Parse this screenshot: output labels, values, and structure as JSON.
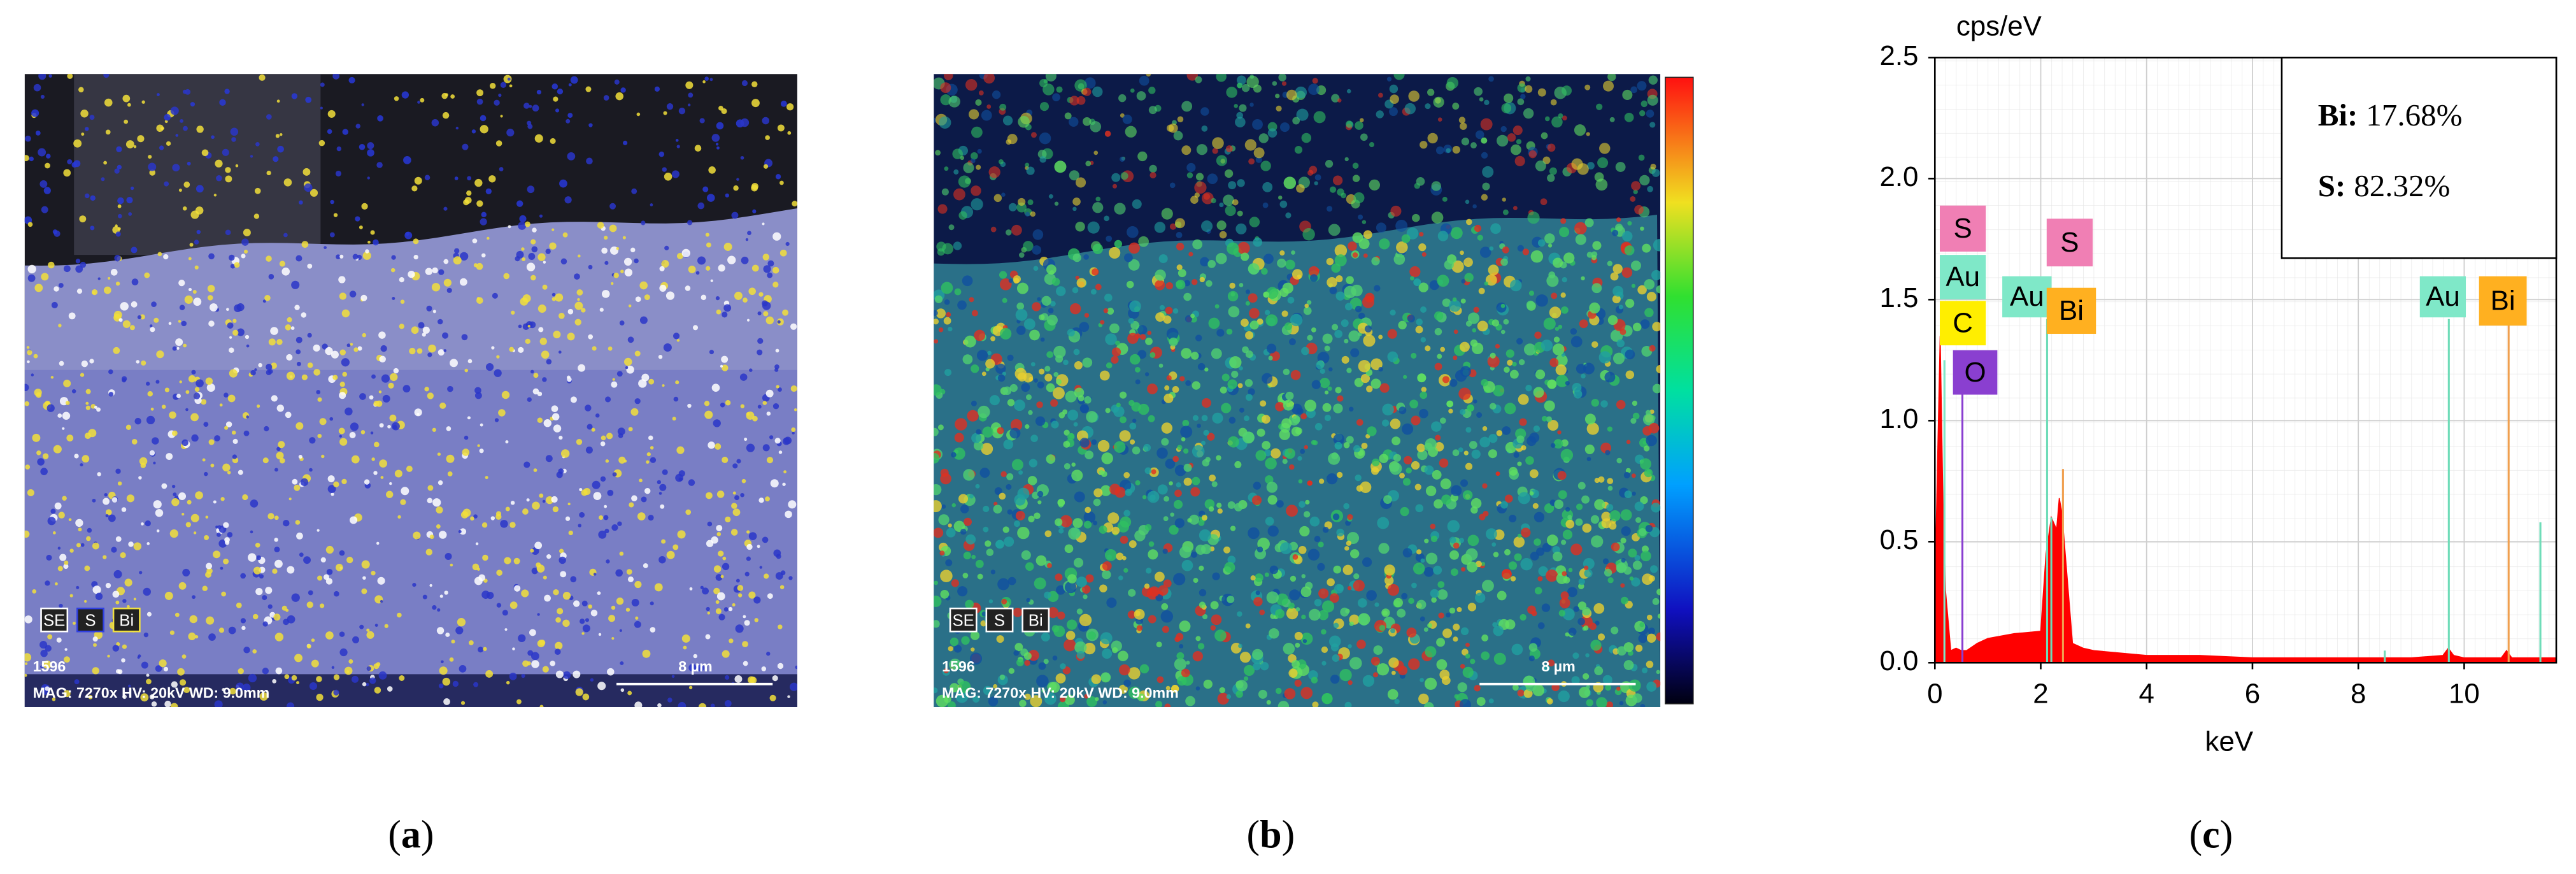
{
  "panels": [
    {
      "caption": {
        "open": "(",
        "letter": "a",
        "close": ")"
      },
      "legend": [
        "SE",
        "S",
        "Bi"
      ],
      "image_id": "1596",
      "info": "MAG: 7270x  HV: 20kV  WD: 9.0mm",
      "scale_bar": "8 µm"
    },
    {
      "caption": {
        "open": "(",
        "letter": "b",
        "close": ")"
      },
      "legend": [
        "SE",
        "S",
        "Bi"
      ],
      "image_id": "1596",
      "info": "MAG: 7270x  HV: 20kV  WD: 9.0mm",
      "scale_bar": "8 µm"
    }
  ],
  "chart_caption": {
    "open": "(",
    "letter": "c",
    "close": ")"
  },
  "chart_data": {
    "type": "area",
    "y_label": "cps/eV",
    "x_label": "keV",
    "x": [
      0,
      0.1,
      0.15,
      0.2,
      0.3,
      0.4,
      0.5,
      0.6,
      0.8,
      1.0,
      1.5,
      2.0,
      2.1,
      2.2,
      2.3,
      2.35,
      2.4,
      2.5,
      2.6,
      2.8,
      3,
      4,
      5,
      6,
      7,
      8,
      9,
      9.6,
      9.7,
      9.8,
      10,
      10.7,
      10.8,
      10.9,
      11,
      11.5,
      11.74
    ],
    "series": [
      {
        "color": "#ff0000",
        "values": [
          0.3,
          1.35,
          0.7,
          0.3,
          0.05,
          0.06,
          0.05,
          0.05,
          0.08,
          0.1,
          0.12,
          0.13,
          0.45,
          0.6,
          0.55,
          0.68,
          0.62,
          0.35,
          0.08,
          0.06,
          0.05,
          0.03,
          0.03,
          0.02,
          0.02,
          0.02,
          0.02,
          0.03,
          0.06,
          0.03,
          0.02,
          0.02,
          0.05,
          0.02,
          0.02,
          0.02,
          0.02
        ]
      }
    ],
    "element_lines": [
      {
        "energy": 0.18,
        "height": 1.25,
        "color": "#7fe8c8"
      },
      {
        "energy": 0.52,
        "height": 1.11,
        "color": "#8a3fd0"
      },
      {
        "energy": 2.12,
        "height": 1.42,
        "color": "#6fdcb8"
      },
      {
        "energy": 2.2,
        "height": 0.6,
        "color": "#6fdcb8"
      },
      {
        "energy": 2.42,
        "height": 0.8,
        "color": "#f0a050"
      },
      {
        "energy": 8.5,
        "height": 0.05,
        "color": "#6fdcb8"
      },
      {
        "energy": 9.71,
        "height": 1.42,
        "color": "#6fdcb8"
      },
      {
        "energy": 10.84,
        "height": 1.42,
        "color": "#f0a050"
      },
      {
        "energy": 11.44,
        "height": 0.58,
        "color": "#6fdcb8"
      }
    ],
    "element_labels": [
      {
        "text": "S",
        "color": "#f07fb4"
      },
      {
        "text": "Au",
        "color": "#7fe8c8"
      },
      {
        "text": "C",
        "color": "#ffee00"
      },
      {
        "text": "O",
        "color": "#8a3fd0"
      },
      {
        "text": "Au",
        "color": "#7fe8c8"
      },
      {
        "text": "S",
        "color": "#f07fb4"
      },
      {
        "text": "Bi",
        "color": "#ffb020"
      },
      {
        "text": "Au",
        "color": "#7fe8c8"
      },
      {
        "text": "Bi",
        "color": "#ffb020"
      }
    ],
    "composition": [
      {
        "element": "Bi:",
        "percent": "17.68%"
      },
      {
        "element": "S:",
        "percent": "82.32%"
      }
    ],
    "xlim": [
      0,
      11.74
    ],
    "ylim": [
      0,
      2.5
    ],
    "xticks": [
      0,
      2,
      4,
      6,
      8,
      10
    ],
    "yticks": [
      {
        "value": 0,
        "label": "0.0"
      },
      0.5,
      {
        "value": 1,
        "label": "1.0"
      },
      1.5,
      {
        "value": 2,
        "label": "2.0"
      },
      2.5
    ],
    "grid": true
  }
}
